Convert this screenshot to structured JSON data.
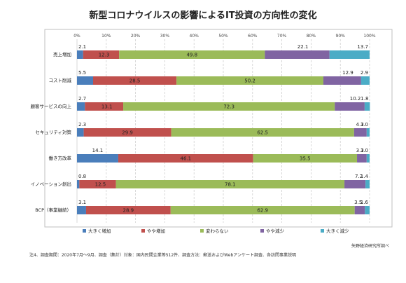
{
  "chart_data": {
    "type": "bar",
    "orientation": "horizontal",
    "stacked": true,
    "title": "新型コロナウイルスの影響によるIT投資の方向性の変化",
    "xlim": [
      0,
      100
    ],
    "xticks": [
      "0%",
      "10%",
      "20%",
      "30%",
      "40%",
      "50%",
      "60%",
      "70%",
      "80%",
      "90%",
      "100%"
    ],
    "categories": [
      "売上増加",
      "コスト削減",
      "顧客サービスの向上",
      "セキュリティ対策",
      "働き方改革",
      "イノベーション創出",
      "BCP（事業継続）"
    ],
    "series": [
      {
        "name": "大きく増加",
        "color": "#4a7ebb",
        "values": [
          2.1,
          5.5,
          2.7,
          2.3,
          14.1,
          0.8,
          3.1
        ]
      },
      {
        "name": "やや増加",
        "color": "#c0504d",
        "values": [
          12.3,
          28.5,
          13.1,
          29.9,
          46.1,
          12.5,
          28.9
        ]
      },
      {
        "name": "変わらない",
        "color": "#9bbb59",
        "values": [
          49.8,
          50.2,
          72.3,
          62.5,
          35.5,
          78.1,
          62.9
        ]
      },
      {
        "name": "やや減少",
        "color": "#8064a2",
        "values": [
          22.1,
          12.9,
          10.2,
          4.3,
          3.3,
          7.2,
          3.5
        ]
      },
      {
        "name": "大きく減少",
        "color": "#4bacc6",
        "values": [
          13.7,
          2.9,
          1.8,
          1.0,
          1.0,
          1.4,
          1.6
        ]
      }
    ],
    "legend_position": "bottom",
    "grid": "vertical-dashed"
  },
  "note": "注4、調査期間：2020年7月～9月、調査（集計）対象：国内民間企業等512件、調査方法：郵送およびWebアンケート調査、各訪問事業説明",
  "source": "矢野経済研究所調べ"
}
